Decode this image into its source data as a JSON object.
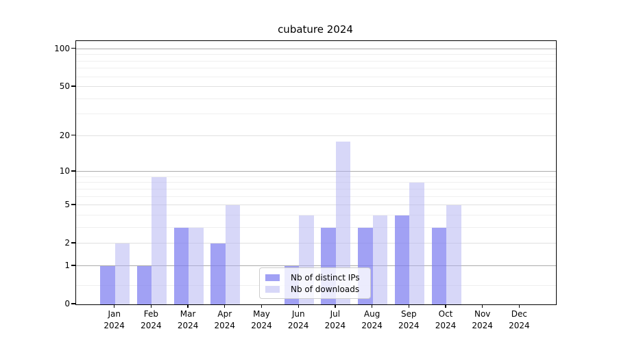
{
  "chart_data": {
    "type": "bar",
    "title": "cubature 2024",
    "categories": [
      "Jan",
      "Feb",
      "Mar",
      "Apr",
      "May",
      "Jun",
      "Jul",
      "Aug",
      "Sep",
      "Oct",
      "Nov",
      "Dec"
    ],
    "year": "2024",
    "series": [
      {
        "name": "Nb of distinct IPs",
        "color": "rgba(125,125,240,0.72)",
        "values": [
          1,
          1,
          3,
          2,
          0,
          1,
          3,
          3,
          4,
          3,
          0,
          0
        ]
      },
      {
        "name": "Nb of downloads",
        "color": "rgba(175,175,242,0.5)",
        "values": [
          2,
          9,
          3,
          5,
          0,
          4,
          18,
          4,
          8,
          5,
          0,
          0
        ]
      }
    ],
    "y_axis": {
      "scale": "log1p",
      "ticks": [
        0,
        1,
        2,
        5,
        10,
        20,
        50,
        100
      ],
      "minor_ticks": [
        0.4,
        3,
        4,
        6,
        7,
        8,
        9,
        30,
        40,
        60,
        70,
        80,
        90
      ],
      "ylim": [
        0,
        115
      ]
    },
    "legend_position": "lower center",
    "grid": true
  },
  "colors": {
    "decade_gridline": "#ababab",
    "mid_gridline": "#e0e0e0",
    "minor_gridline": "#efefef",
    "axis": "#000000",
    "background": "#ffffff",
    "legend_border": "#cccccc",
    "text": "#000000"
  }
}
